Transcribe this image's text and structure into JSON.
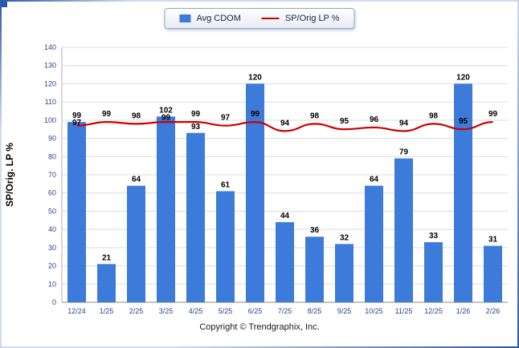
{
  "legend": {
    "items": [
      {
        "label": "Avg CDOM",
        "type": "bar",
        "color": "#3d7bdb"
      },
      {
        "label": "SP/Orig LP %",
        "type": "line",
        "color": "#cc0000"
      }
    ]
  },
  "footer": {
    "copyright": "Copyright © Trendgraphix, Inc."
  },
  "chart_data": {
    "type": "bar",
    "categories": [
      "12/24",
      "1/25",
      "2/25",
      "3/25",
      "4/25",
      "5/25",
      "6/25",
      "7/25",
      "8/25",
      "9/25",
      "10/25",
      "11/25",
      "12/25",
      "1/26",
      "2/26"
    ],
    "series": [
      {
        "name": "Avg CDOM",
        "type": "bar",
        "color": "#3d7bdb",
        "values": [
          99,
          21,
          64,
          102,
          93,
          61,
          120,
          44,
          36,
          32,
          64,
          79,
          33,
          120,
          31
        ]
      },
      {
        "name": "SP/Orig LP %",
        "type": "line",
        "color": "#cc0000",
        "values": [
          97,
          99,
          98,
          99,
          99,
          97,
          99,
          94,
          98,
          95,
          96,
          94,
          98,
          95,
          99
        ]
      }
    ],
    "title": "",
    "xlabel": "",
    "ylabel": "SP/Orig. LP %",
    "ylim": [
      0,
      140
    ],
    "ytick_step": 10,
    "grid": true,
    "legend_position": "top-center"
  }
}
